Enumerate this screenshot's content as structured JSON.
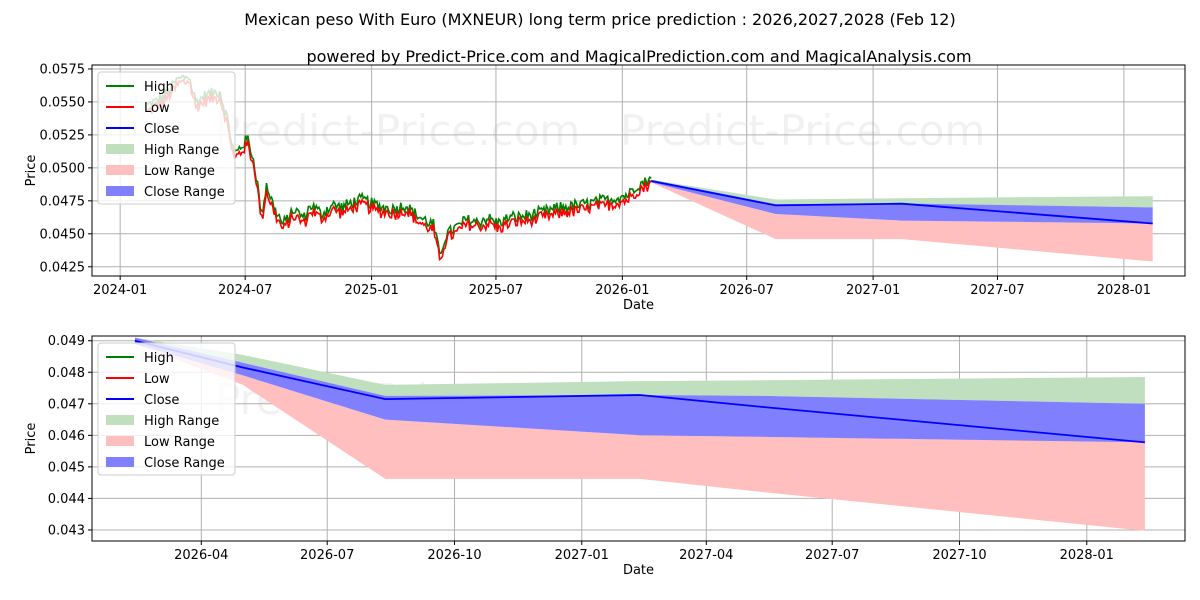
{
  "title": "Mexican peso With Euro (MXNEUR) long term price prediction : 2026,2027,2028 (Feb 12)",
  "subtitle": "powered by Predict-Price.com and MagicalPrediction.com and MagicalAnalysis.com",
  "watermark": "Predict-Price.com",
  "colors": {
    "high": "#008000",
    "low": "#ff0000",
    "close": "#0000ff",
    "high_range": "#bfdfbf",
    "low_range": "#ffbfbf",
    "close_range": "#8080ff"
  },
  "legend": [
    "High",
    "Low",
    "Close",
    "High Range",
    "Low Range",
    "Close Range"
  ],
  "chart_data": [
    {
      "type": "line",
      "xlabel": "Date",
      "ylabel": "Price",
      "xlim": [
        "2023-11-21",
        "2028-03-30"
      ],
      "ylim": [
        0.0418,
        0.0578
      ],
      "x_ticks": [
        "2024-01",
        "2024-07",
        "2025-01",
        "2025-07",
        "2026-01",
        "2026-07",
        "2027-01",
        "2027-07",
        "2028-01"
      ],
      "y_ticks": [
        "0.0425",
        "0.0450",
        "0.0475",
        "0.0500",
        "0.0525",
        "0.0550",
        "0.0575"
      ],
      "history_anchors": [
        [
          "2024-02-10",
          0.0545
        ],
        [
          "2024-03-05",
          0.0552
        ],
        [
          "2024-03-25",
          0.0565
        ],
        [
          "2024-04-10",
          0.0568
        ],
        [
          "2024-04-20",
          0.0548
        ],
        [
          "2024-05-05",
          0.0553
        ],
        [
          "2024-05-25",
          0.0556
        ],
        [
          "2024-06-05",
          0.0535
        ],
        [
          "2024-06-15",
          0.0508
        ],
        [
          "2024-06-28",
          0.0516
        ],
        [
          "2024-07-05",
          0.052
        ],
        [
          "2024-07-15",
          0.05
        ],
        [
          "2024-07-25",
          0.0462
        ],
        [
          "2024-08-01",
          0.0485
        ],
        [
          "2024-08-12",
          0.0468
        ],
        [
          "2024-08-25",
          0.0455
        ],
        [
          "2024-09-10",
          0.0466
        ],
        [
          "2024-09-25",
          0.046
        ],
        [
          "2024-10-05",
          0.047
        ],
        [
          "2024-10-20",
          0.0463
        ],
        [
          "2024-11-05",
          0.047
        ],
        [
          "2024-11-20",
          0.0468
        ],
        [
          "2024-12-05",
          0.0472
        ],
        [
          "2024-12-20",
          0.0474
        ],
        [
          "2025-01-05",
          0.047
        ],
        [
          "2025-01-20",
          0.0468
        ],
        [
          "2025-02-05",
          0.0467
        ],
        [
          "2025-02-20",
          0.047
        ],
        [
          "2025-03-05",
          0.0463
        ],
        [
          "2025-03-20",
          0.0458
        ],
        [
          "2025-04-01",
          0.0455
        ],
        [
          "2025-04-10",
          0.0432
        ],
        [
          "2025-04-20",
          0.0448
        ],
        [
          "2025-05-05",
          0.0453
        ],
        [
          "2025-05-20",
          0.0459
        ],
        [
          "2025-06-05",
          0.0457
        ],
        [
          "2025-06-20",
          0.046
        ],
        [
          "2025-07-05",
          0.0456
        ],
        [
          "2025-07-20",
          0.046
        ],
        [
          "2025-08-05",
          0.0461
        ],
        [
          "2025-08-20",
          0.0462
        ],
        [
          "2025-09-05",
          0.0464
        ],
        [
          "2025-09-20",
          0.0466
        ],
        [
          "2025-10-05",
          0.0468
        ],
        [
          "2025-10-20",
          0.0469
        ],
        [
          "2025-11-05",
          0.047
        ],
        [
          "2025-11-20",
          0.0472
        ],
        [
          "2025-12-05",
          0.0473
        ],
        [
          "2025-12-20",
          0.0475
        ],
        [
          "2026-01-10",
          0.0478
        ],
        [
          "2026-01-22",
          0.0485
        ],
        [
          "2026-02-01",
          0.0487
        ],
        [
          "2026-02-12",
          0.049
        ]
      ],
      "forecast": {
        "dates": [
          "2026-02-12",
          "2026-08-12",
          "2027-02-12",
          "2028-02-12"
        ],
        "close": [
          0.049,
          0.04715,
          0.04728,
          0.04578
        ],
        "high_range_upper": [
          0.0491,
          0.0476,
          0.0477,
          0.04785
        ],
        "high_range_lower": [
          0.049,
          0.04715,
          0.04728,
          0.047
        ],
        "low_range_upper": [
          0.0489,
          0.0465,
          0.046,
          0.0458
        ],
        "low_range_lower": [
          0.0489,
          0.0446,
          0.0446,
          0.0429
        ],
        "close_range_upper": [
          0.0491,
          0.04725,
          0.0473,
          0.047
        ],
        "close_range_lower": [
          0.0489,
          0.0465,
          0.046,
          0.04578
        ]
      }
    },
    {
      "type": "line",
      "xlabel": "Date",
      "ylabel": "Price",
      "xlim": [
        "2026-01-12",
        "2028-03-12"
      ],
      "ylim": [
        0.04265,
        0.04915
      ],
      "x_ticks": [
        "2026-04",
        "2026-07",
        "2026-10",
        "2027-01",
        "2027-04",
        "2027-07",
        "2027-10",
        "2028-01"
      ],
      "y_ticks": [
        "0.043",
        "0.044",
        "0.045",
        "0.046",
        "0.047",
        "0.048",
        "0.049"
      ],
      "forecast": {
        "dates": [
          "2026-02-12",
          "2026-05-01",
          "2026-08-12",
          "2027-02-12",
          "2027-05-12",
          "2028-02-12"
        ],
        "close": [
          0.049,
          0.04815,
          0.04715,
          0.04728,
          0.0469,
          0.04578
        ],
        "high_range_upper": [
          0.0491,
          0.04855,
          0.0476,
          0.04772,
          0.04775,
          0.04785
        ],
        "high_range_lower": [
          0.049,
          0.0483,
          0.04725,
          0.04728,
          0.04725,
          0.047
        ],
        "low_range_upper": [
          0.0489,
          0.0479,
          0.0465,
          0.046,
          0.04595,
          0.0458
        ],
        "low_range_lower": [
          0.0489,
          0.0476,
          0.04462,
          0.04462,
          0.0442,
          0.04297
        ],
        "close_range_upper": [
          0.0491,
          0.0483,
          0.04725,
          0.04728,
          0.04725,
          0.047
        ],
        "close_range_lower": [
          0.0489,
          0.0479,
          0.0465,
          0.046,
          0.04595,
          0.04578
        ]
      }
    }
  ]
}
